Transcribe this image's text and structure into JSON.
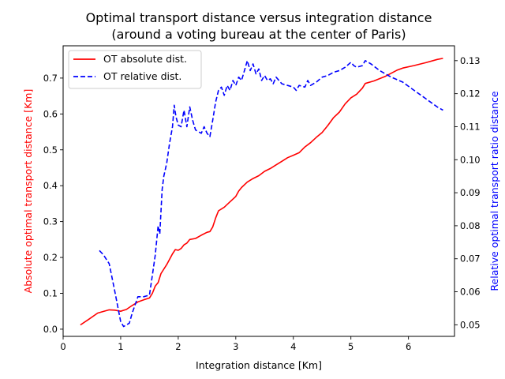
{
  "chart_data": {
    "type": "line",
    "title": "Optimal transport distance versus integration distance",
    "subtitle": "(around a voting bureau at the center of Paris)",
    "xlabel": "Integration distance [Km]",
    "ylabel_left": "Absolute optimal transport distance [Km]",
    "ylabel_right": "Relative optimal transport ratio distance",
    "xlim": [
      0,
      6.8
    ],
    "ylim_left": [
      -0.02,
      0.79
    ],
    "ylim_right": [
      0.0465,
      0.1345
    ],
    "x_ticks": [
      0,
      1,
      2,
      3,
      4,
      5,
      6
    ],
    "y_left_ticks": [
      0.0,
      0.1,
      0.2,
      0.3,
      0.4,
      0.5,
      0.6,
      0.7
    ],
    "y_right_ticks": [
      0.05,
      0.06,
      0.07,
      0.08,
      0.09,
      0.1,
      0.11,
      0.12,
      0.13
    ],
    "x_tick_labels": [
      "0",
      "1",
      "2",
      "3",
      "4",
      "5",
      "6"
    ],
    "y_left_tick_labels": [
      "0.0",
      "0.1",
      "0.2",
      "0.3",
      "0.4",
      "0.5",
      "0.6",
      "0.7"
    ],
    "y_right_tick_labels": [
      "0.05",
      "0.06",
      "0.07",
      "0.08",
      "0.09",
      "0.10",
      "0.11",
      "0.12",
      "0.13"
    ],
    "grid": false,
    "legend_position": "upper-left",
    "series": [
      {
        "name": "OT absolute dist.",
        "axis": "left",
        "color": "#ff0000",
        "style": "solid",
        "points": [
          [
            0.3,
            0.012
          ],
          [
            0.45,
            0.028
          ],
          [
            0.6,
            0.045
          ],
          [
            0.8,
            0.054
          ],
          [
            0.9,
            0.053
          ],
          [
            1.0,
            0.05
          ],
          [
            1.1,
            0.055
          ],
          [
            1.2,
            0.066
          ],
          [
            1.3,
            0.076
          ],
          [
            1.4,
            0.082
          ],
          [
            1.5,
            0.087
          ],
          [
            1.55,
            0.1
          ],
          [
            1.6,
            0.12
          ],
          [
            1.65,
            0.13
          ],
          [
            1.7,
            0.155
          ],
          [
            1.8,
            0.18
          ],
          [
            1.9,
            0.21
          ],
          [
            1.95,
            0.222
          ],
          [
            2.0,
            0.22
          ],
          [
            2.05,
            0.225
          ],
          [
            2.1,
            0.235
          ],
          [
            2.15,
            0.24
          ],
          [
            2.2,
            0.25
          ],
          [
            2.3,
            0.253
          ],
          [
            2.4,
            0.262
          ],
          [
            2.5,
            0.27
          ],
          [
            2.55,
            0.272
          ],
          [
            2.6,
            0.285
          ],
          [
            2.65,
            0.31
          ],
          [
            2.7,
            0.33
          ],
          [
            2.8,
            0.34
          ],
          [
            2.9,
            0.355
          ],
          [
            3.0,
            0.37
          ],
          [
            3.05,
            0.385
          ],
          [
            3.1,
            0.395
          ],
          [
            3.2,
            0.41
          ],
          [
            3.3,
            0.42
          ],
          [
            3.4,
            0.428
          ],
          [
            3.5,
            0.44
          ],
          [
            3.6,
            0.448
          ],
          [
            3.7,
            0.458
          ],
          [
            3.8,
            0.468
          ],
          [
            3.9,
            0.478
          ],
          [
            4.0,
            0.485
          ],
          [
            4.1,
            0.492
          ],
          [
            4.2,
            0.508
          ],
          [
            4.3,
            0.52
          ],
          [
            4.4,
            0.535
          ],
          [
            4.5,
            0.548
          ],
          [
            4.6,
            0.568
          ],
          [
            4.7,
            0.59
          ],
          [
            4.8,
            0.605
          ],
          [
            4.9,
            0.628
          ],
          [
            5.0,
            0.645
          ],
          [
            5.1,
            0.655
          ],
          [
            5.2,
            0.672
          ],
          [
            5.25,
            0.685
          ],
          [
            5.4,
            0.692
          ],
          [
            5.6,
            0.705
          ],
          [
            5.8,
            0.722
          ],
          [
            5.9,
            0.728
          ],
          [
            6.1,
            0.735
          ],
          [
            6.3,
            0.743
          ],
          [
            6.5,
            0.752
          ],
          [
            6.6,
            0.755
          ]
        ]
      },
      {
        "name": "OT relative dist.",
        "axis": "right",
        "color": "#0000ff",
        "style": "dashed",
        "points": [
          [
            0.63,
            0.0725
          ],
          [
            0.7,
            0.0712
          ],
          [
            0.8,
            0.0685
          ],
          [
            0.9,
            0.06
          ],
          [
            1.0,
            0.051
          ],
          [
            1.05,
            0.0495
          ],
          [
            1.15,
            0.0505
          ],
          [
            1.2,
            0.0535
          ],
          [
            1.3,
            0.0585
          ],
          [
            1.4,
            0.0585
          ],
          [
            1.5,
            0.059
          ],
          [
            1.55,
            0.065
          ],
          [
            1.6,
            0.071
          ],
          [
            1.65,
            0.08
          ],
          [
            1.68,
            0.0775
          ],
          [
            1.72,
            0.091
          ],
          [
            1.75,
            0.095
          ],
          [
            1.8,
            0.099
          ],
          [
            1.85,
            0.105
          ],
          [
            1.9,
            0.11
          ],
          [
            1.93,
            0.1165
          ],
          [
            1.96,
            0.113
          ],
          [
            2.0,
            0.1105
          ],
          [
            2.05,
            0.11
          ],
          [
            2.1,
            0.115
          ],
          [
            2.15,
            0.11
          ],
          [
            2.2,
            0.116
          ],
          [
            2.25,
            0.112
          ],
          [
            2.3,
            0.109
          ],
          [
            2.4,
            0.108
          ],
          [
            2.45,
            0.11
          ],
          [
            2.5,
            0.108
          ],
          [
            2.55,
            0.107
          ],
          [
            2.6,
            0.112
          ],
          [
            2.65,
            0.1175
          ],
          [
            2.7,
            0.121
          ],
          [
            2.75,
            0.122
          ],
          [
            2.8,
            0.1195
          ],
          [
            2.85,
            0.1225
          ],
          [
            2.9,
            0.121
          ],
          [
            2.95,
            0.124
          ],
          [
            3.0,
            0.1225
          ],
          [
            3.05,
            0.125
          ],
          [
            3.1,
            0.124
          ],
          [
            3.15,
            0.127
          ],
          [
            3.2,
            0.13
          ],
          [
            3.25,
            0.127
          ],
          [
            3.3,
            0.129
          ],
          [
            3.35,
            0.126
          ],
          [
            3.4,
            0.1275
          ],
          [
            3.45,
            0.124
          ],
          [
            3.5,
            0.1255
          ],
          [
            3.55,
            0.124
          ],
          [
            3.6,
            0.1245
          ],
          [
            3.65,
            0.123
          ],
          [
            3.7,
            0.125
          ],
          [
            3.8,
            0.123
          ],
          [
            3.9,
            0.1225
          ],
          [
            4.0,
            0.122
          ],
          [
            4.05,
            0.121
          ],
          [
            4.1,
            0.1225
          ],
          [
            4.2,
            0.122
          ],
          [
            4.25,
            0.124
          ],
          [
            4.3,
            0.1225
          ],
          [
            4.4,
            0.1235
          ],
          [
            4.5,
            0.125
          ],
          [
            4.6,
            0.1255
          ],
          [
            4.7,
            0.1265
          ],
          [
            4.8,
            0.127
          ],
          [
            4.9,
            0.128
          ],
          [
            5.0,
            0.1295
          ],
          [
            5.05,
            0.1285
          ],
          [
            5.1,
            0.128
          ],
          [
            5.2,
            0.1285
          ],
          [
            5.25,
            0.13
          ],
          [
            5.35,
            0.129
          ],
          [
            5.5,
            0.127
          ],
          [
            5.7,
            0.125
          ],
          [
            5.9,
            0.1235
          ],
          [
            6.1,
            0.121
          ],
          [
            6.3,
            0.1185
          ],
          [
            6.5,
            0.116
          ],
          [
            6.6,
            0.115
          ]
        ]
      }
    ]
  }
}
